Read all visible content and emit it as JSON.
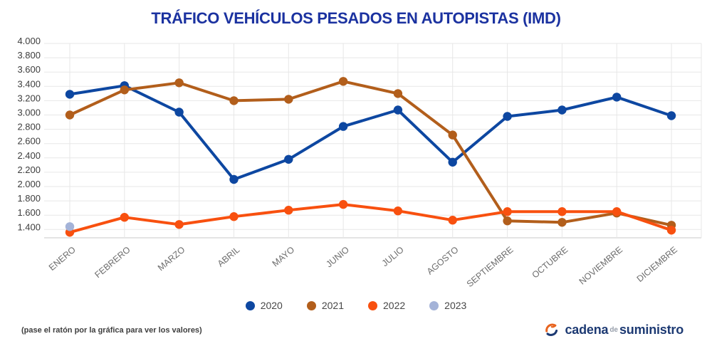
{
  "title": "TRÁFICO VEHÍCULOS PESADOS EN AUTOPISTAS (IMD)",
  "footer": {
    "note": "(pase el ratón por la gráfica para ver los valores)"
  },
  "logo": {
    "word1": "cadena",
    "word2": "de",
    "word3": "suministro",
    "icon": "circular-arrow-swirl",
    "icon_colors": {
      "orange": "#e8641f",
      "blue": "#1d3a73"
    }
  },
  "legend": [
    {
      "label": "2020",
      "color": "#0d47a1"
    },
    {
      "label": "2021",
      "color": "#b25e1b"
    },
    {
      "label": "2022",
      "color": "#f8500f"
    },
    {
      "label": "2023",
      "color": "#a4b3d8"
    }
  ],
  "colors": {
    "title": "#1b32a0",
    "gridline": "#e7e7e7",
    "baseline": "#c9c9c9",
    "y_tick_label": "#3d3d3d",
    "x_tick_label": "#6d6d6d"
  },
  "chart_data": {
    "type": "line",
    "title": "TRÁFICO VEHÍCULOS PESADOS EN AUTOPISTAS (IMD)",
    "categories": [
      "ENERO",
      "FEBRERO",
      "MARZO",
      "ABRIL",
      "MAYO",
      "JUNIO",
      "JULIO",
      "AGOSTO",
      "SEPTIEMBRE",
      "OCTUBRE",
      "NOVIEMBRE",
      "DICIEMBRE"
    ],
    "series": [
      {
        "name": "2020",
        "color": "#0d47a1",
        "values": [
          3290,
          3410,
          3040,
          2100,
          2380,
          2840,
          3070,
          2340,
          2980,
          3070,
          3250,
          2990
        ]
      },
      {
        "name": "2021",
        "color": "#b25e1b",
        "values": [
          3000,
          3350,
          3450,
          3200,
          3220,
          3470,
          3300,
          2720,
          1520,
          1500,
          1630,
          1460
        ]
      },
      {
        "name": "2022",
        "color": "#f8500f",
        "values": [
          1360,
          1570,
          1470,
          1580,
          1670,
          1750,
          1660,
          1530,
          1650,
          1650,
          1650,
          1390
        ]
      },
      {
        "name": "2023",
        "color": "#a4b3d8",
        "values": [
          1440,
          null,
          null,
          null,
          null,
          null,
          null,
          null,
          null,
          null,
          null,
          null
        ]
      }
    ],
    "xlabel": "",
    "ylabel": "",
    "y_ticks": [
      4000,
      3800,
      3600,
      3400,
      3200,
      3000,
      2800,
      2600,
      2400,
      2200,
      2000,
      1800,
      1600,
      1400
    ],
    "y_tick_labels": [
      "4.000",
      "3.800",
      "3.600",
      "3.400",
      "3.200",
      "3.000",
      "2.800",
      "2.600",
      "2.400",
      "2.200",
      "2.000",
      "1.800",
      "1.600",
      "1.400"
    ],
    "ylim": [
      1290,
      4000
    ],
    "grid": true,
    "legend_position": "bottom",
    "x_label_rotation_deg": -40
  }
}
